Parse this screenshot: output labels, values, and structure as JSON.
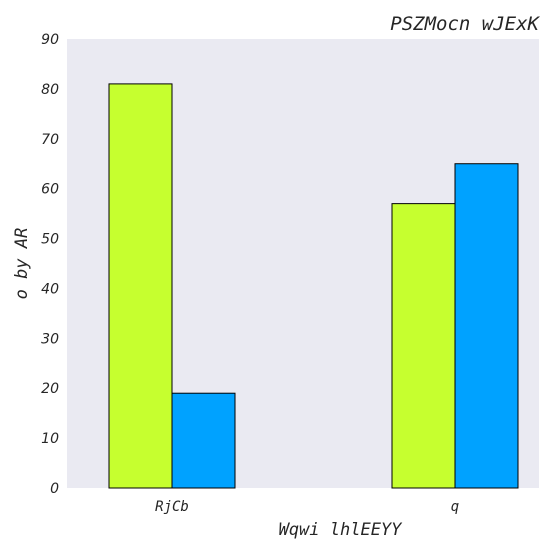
{
  "chart_data": {
    "type": "bar",
    "title": "PSZMocn wJExK",
    "xlabel": "Wqwi lhlEEYY",
    "ylabel": "o by AR",
    "categories": [
      "RjCb",
      "q"
    ],
    "series": [
      {
        "values": [
          81,
          57
        ],
        "color": "#c6ff2f"
      },
      {
        "values": [
          19,
          65
        ],
        "color": "#00a2ff"
      }
    ],
    "ylim": [
      0,
      90
    ],
    "yticks": [
      0,
      10,
      20,
      30,
      40,
      50,
      60,
      70,
      80,
      90
    ],
    "grid": false,
    "background": "#eaeaf2"
  }
}
